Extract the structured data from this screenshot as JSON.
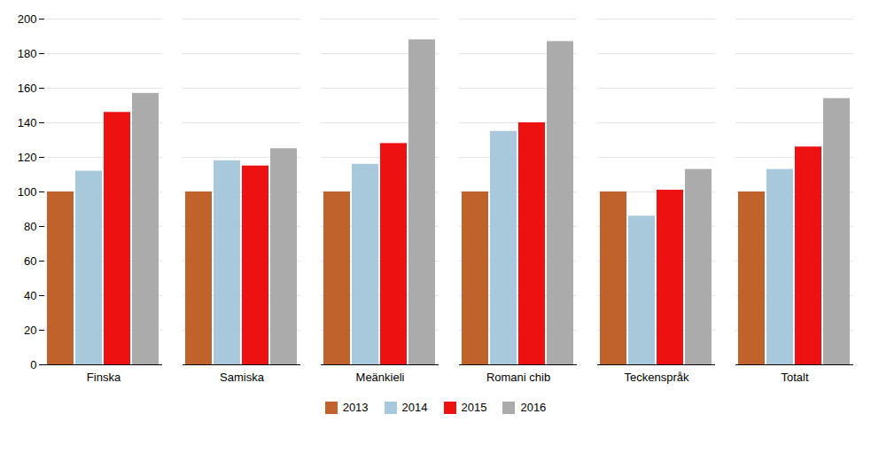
{
  "chart_data": {
    "type": "bar",
    "categories": [
      "Finska",
      "Samiska",
      "Meänkieli",
      "Romani chib",
      "Teckenspråk",
      "Totalt"
    ],
    "series": [
      {
        "name": "2013",
        "color": "#C0622C",
        "values": [
          100,
          100,
          100,
          100,
          100,
          100
        ]
      },
      {
        "name": "2014",
        "color": "#A8C8DC",
        "values": [
          112,
          118,
          116,
          135,
          86,
          113
        ]
      },
      {
        "name": "2015",
        "color": "#EE1111",
        "values": [
          146,
          115,
          128,
          140,
          101,
          126
        ]
      },
      {
        "name": "2016",
        "color": "#ABABAB",
        "values": [
          157,
          125,
          188,
          187,
          113,
          154
        ]
      }
    ],
    "ylim": [
      0,
      200
    ],
    "yticks": [
      0,
      20,
      40,
      60,
      80,
      100,
      120,
      140,
      160,
      180,
      200
    ],
    "grid": true,
    "legend": "bottom"
  }
}
